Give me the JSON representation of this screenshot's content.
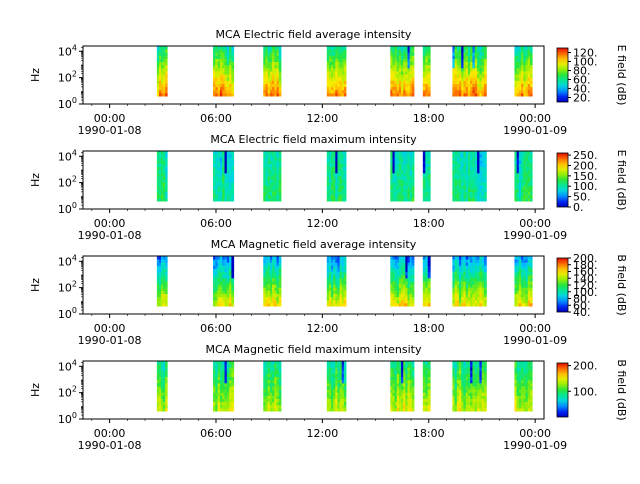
{
  "chart_data": [
    {
      "type": "heatmap",
      "title": "MCA  Electric field average intensity",
      "ylabel": "Hz",
      "y_ticks": [
        "10^0",
        "10^2",
        "10^4"
      ],
      "x_ticks": [
        "00:00",
        "06:00",
        "12:00",
        "18:00",
        "00:00"
      ],
      "x_date_labels": [
        "1990-01-08",
        "1990-01-09"
      ],
      "colorbar": {
        "label": "E field (dB)",
        "ticks": [
          "20.",
          "40.",
          "60.",
          "80.",
          "100.",
          "120."
        ],
        "range": [
          10,
          130
        ]
      },
      "segments_utc": [
        [
          "02:40",
          "03:15"
        ],
        [
          "05:50",
          "07:00"
        ],
        [
          "08:40",
          "09:40"
        ],
        [
          "12:15",
          "13:20"
        ],
        [
          "15:50",
          "17:10"
        ],
        [
          "17:40",
          "18:05"
        ],
        [
          "19:20",
          "20:20"
        ],
        [
          "20:20",
          "21:15"
        ],
        [
          "22:50",
          "23:50"
        ]
      ],
      "y_range_log10": [
        0.6,
        4.4
      ],
      "colormap": "rainbow"
    },
    {
      "type": "heatmap",
      "title": "MCA  Electric field maximum intensity",
      "ylabel": "Hz",
      "y_ticks": [
        "10^0",
        "10^2",
        "10^4"
      ],
      "x_ticks": [
        "00:00",
        "06:00",
        "12:00",
        "18:00",
        "00:00"
      ],
      "x_date_labels": [
        "1990-01-08",
        "1990-01-09"
      ],
      "colorbar": {
        "label": "E field (dB)",
        "ticks": [
          "0.",
          "50.",
          "100.",
          "150.",
          "200.",
          "250."
        ],
        "range": [
          0,
          260
        ]
      },
      "segments_utc": [
        [
          "02:40",
          "03:15"
        ],
        [
          "05:50",
          "07:00"
        ],
        [
          "08:40",
          "09:40"
        ],
        [
          "12:15",
          "13:20"
        ],
        [
          "15:50",
          "17:10"
        ],
        [
          "17:40",
          "18:05"
        ],
        [
          "19:20",
          "20:20"
        ],
        [
          "20:20",
          "21:15"
        ],
        [
          "22:50",
          "23:50"
        ]
      ],
      "y_range_log10": [
        0.6,
        4.4
      ],
      "colormap": "rainbow"
    },
    {
      "type": "heatmap",
      "title": "MCA  Magnetic field average intensity",
      "ylabel": "Hz",
      "y_ticks": [
        "10^0",
        "10^2",
        "10^4"
      ],
      "x_ticks": [
        "00:00",
        "06:00",
        "12:00",
        "18:00",
        "00:00"
      ],
      "x_date_labels": [
        "1990-01-08",
        "1990-01-09"
      ],
      "colorbar": {
        "label": "B field (dB)",
        "ticks": [
          "40.",
          "60.",
          "80.",
          "100.",
          "120.",
          "140.",
          "160.",
          "180.",
          "200."
        ],
        "range": [
          40,
          200
        ]
      },
      "segments_utc": [
        [
          "02:40",
          "03:15"
        ],
        [
          "05:50",
          "07:00"
        ],
        [
          "08:40",
          "09:40"
        ],
        [
          "12:15",
          "13:20"
        ],
        [
          "15:50",
          "17:10"
        ],
        [
          "17:40",
          "18:05"
        ],
        [
          "19:20",
          "20:20"
        ],
        [
          "20:20",
          "21:15"
        ],
        [
          "22:50",
          "23:50"
        ]
      ],
      "y_range_log10": [
        0.6,
        4.4
      ],
      "colormap": "rainbow"
    },
    {
      "type": "heatmap",
      "title": "MCA  Magnetic field maximum intensity",
      "ylabel": "Hz",
      "y_ticks": [
        "10^0",
        "10^2",
        "10^4"
      ],
      "x_ticks": [
        "00:00",
        "06:00",
        "12:00",
        "18:00",
        "00:00"
      ],
      "x_date_labels": [
        "1990-01-08",
        "1990-01-09"
      ],
      "colorbar": {
        "label": "B field (dB)",
        "ticks": [
          "100.",
          "200."
        ],
        "range": [
          0,
          210
        ]
      },
      "segments_utc": [
        [
          "02:40",
          "03:15"
        ],
        [
          "05:50",
          "07:00"
        ],
        [
          "08:40",
          "09:40"
        ],
        [
          "12:15",
          "13:20"
        ],
        [
          "15:50",
          "17:10"
        ],
        [
          "17:40",
          "18:05"
        ],
        [
          "19:20",
          "20:20"
        ],
        [
          "20:20",
          "21:15"
        ],
        [
          "22:50",
          "23:50"
        ]
      ],
      "y_range_log10": [
        0.6,
        4.4
      ],
      "colormap": "rainbow"
    }
  ]
}
